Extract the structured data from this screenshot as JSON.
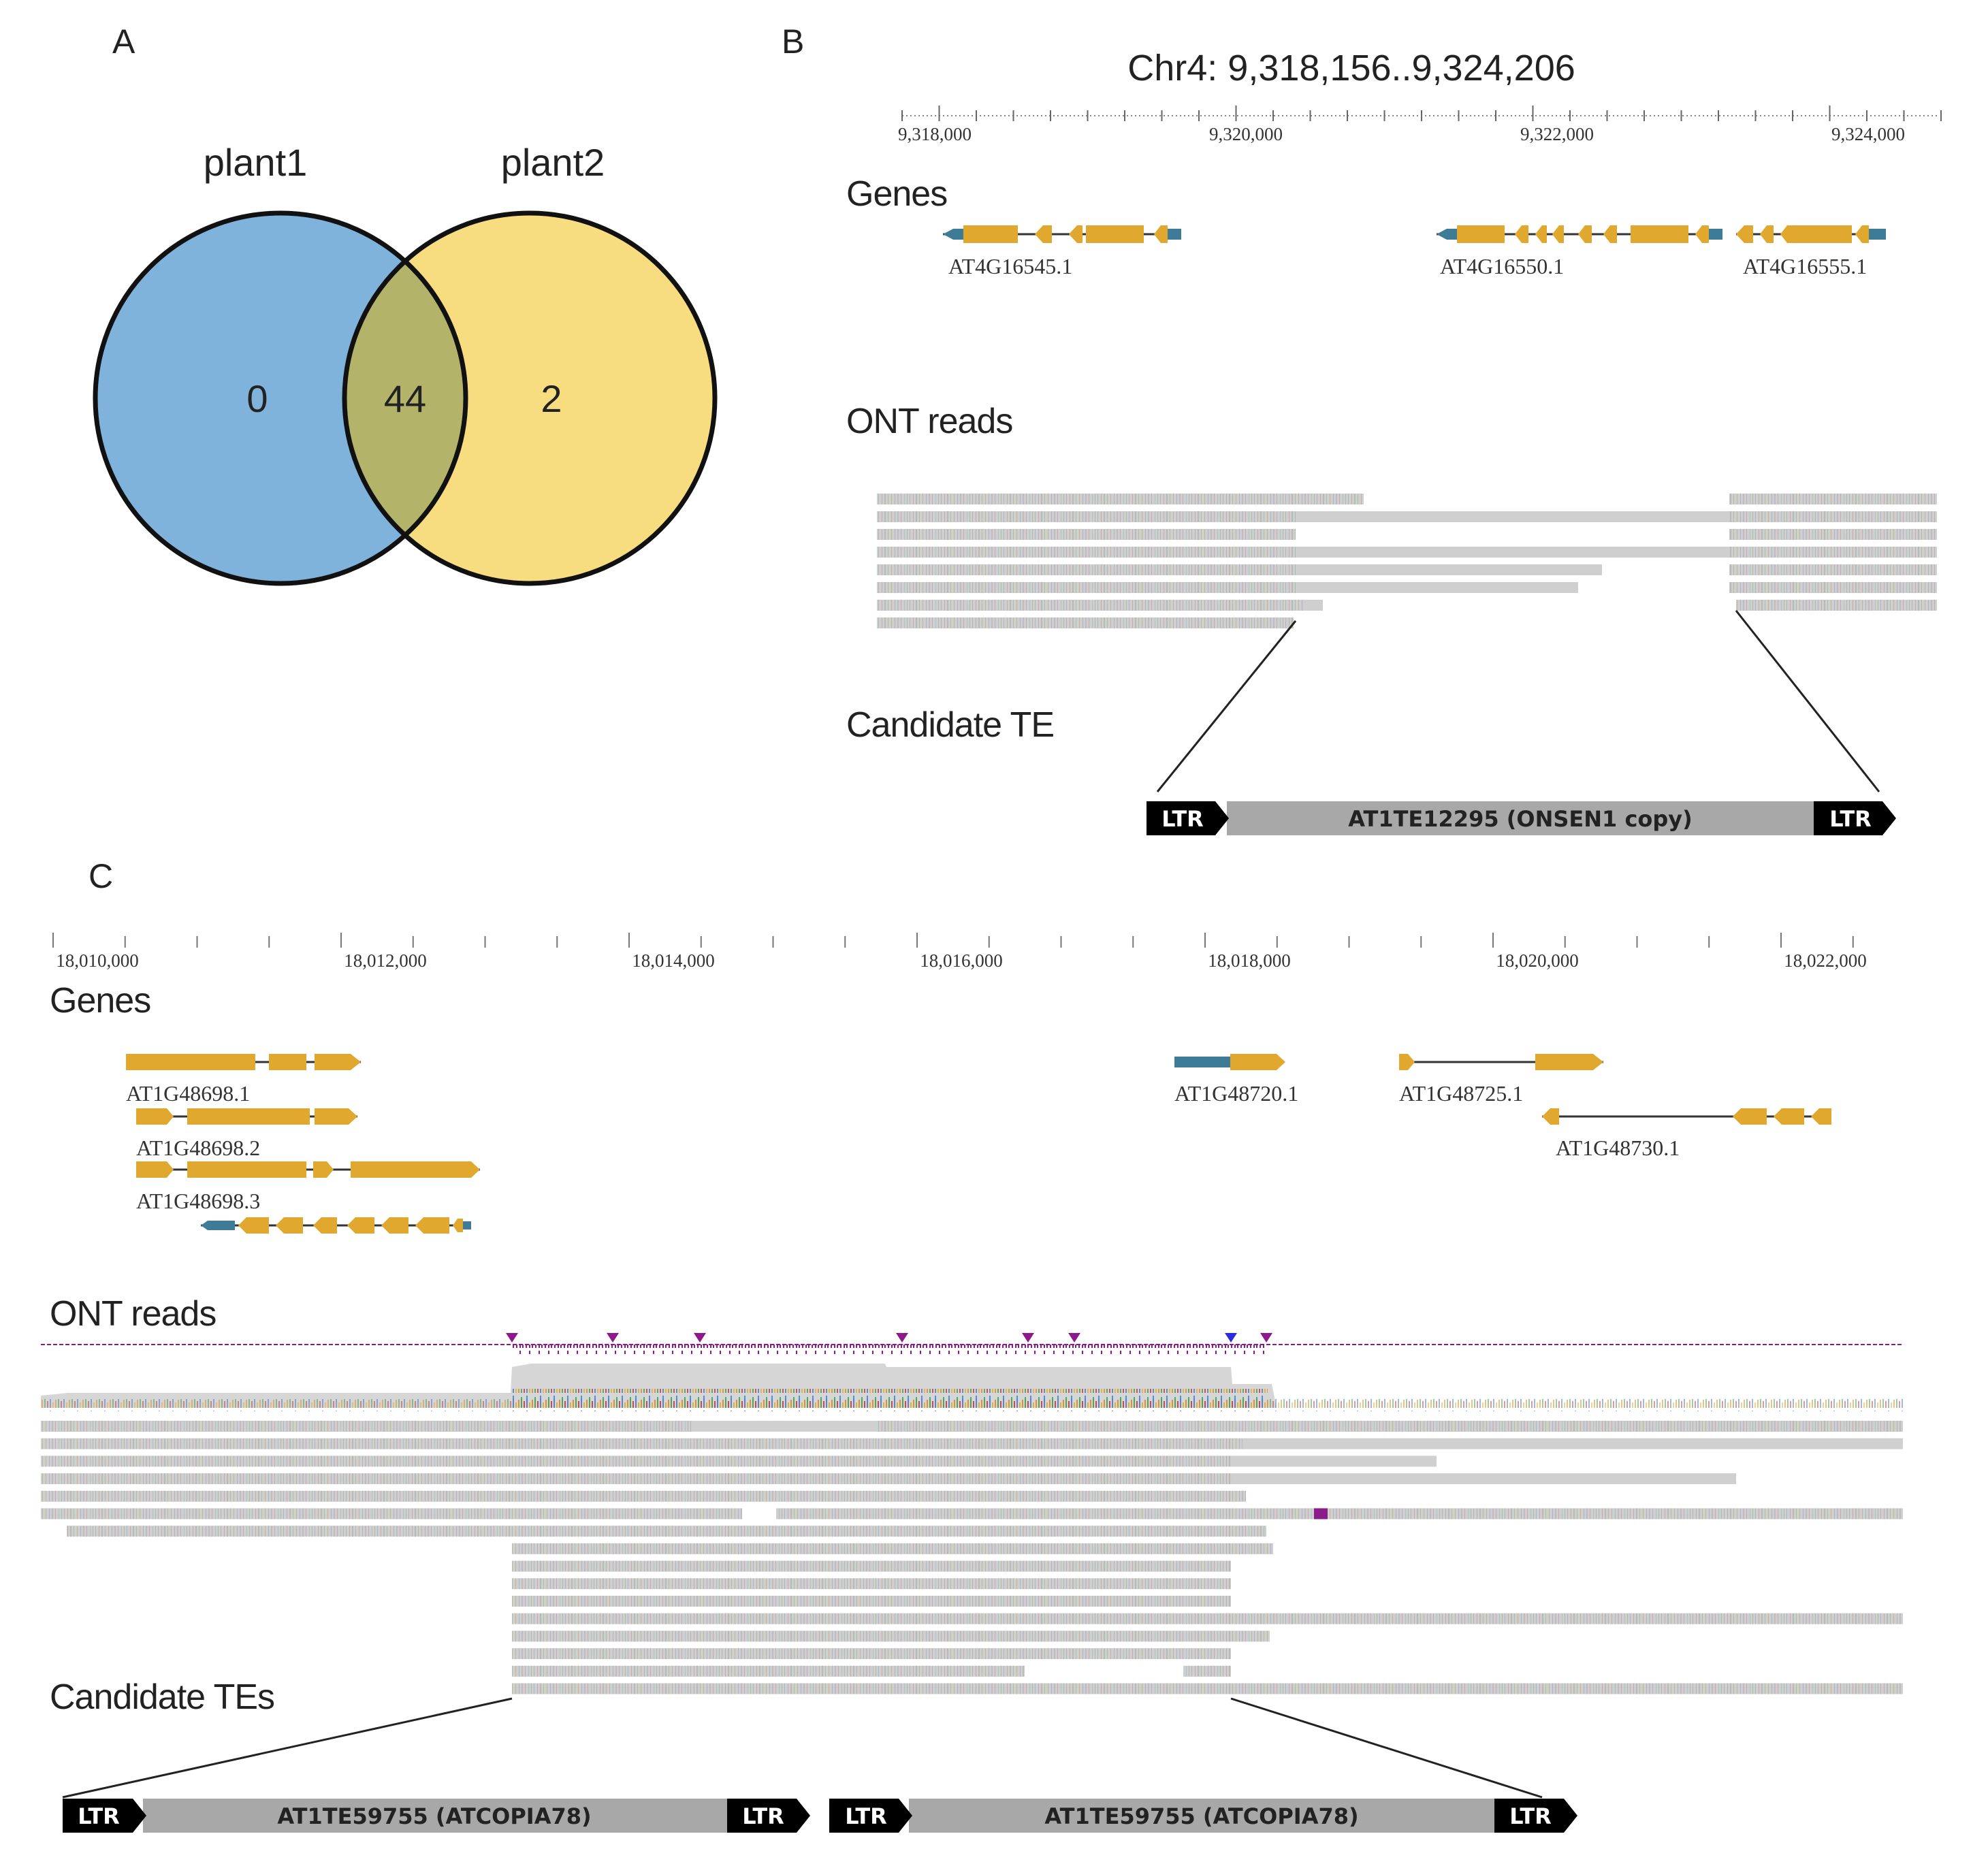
{
  "panels": {
    "a": {
      "letter": "A"
    },
    "b": {
      "letter": "B"
    },
    "c": {
      "letter": "C"
    }
  },
  "venn": {
    "set_left": "plant1",
    "set_right": "plant2",
    "only_left": "0",
    "both": "44",
    "only_right": "2",
    "colors": {
      "left": "#7fb3dc",
      "right": "#f7dc80",
      "overlap": "#b3b36a"
    }
  },
  "panel_b": {
    "region": "Chr4: 9,318,156..9,324,206",
    "ticks": [
      "9,318,000",
      "9,320,000",
      "9,322,000",
      "9,324,000"
    ],
    "genes_title": "Genes",
    "genes": [
      "AT4G16545.1",
      "AT4G16550.1",
      "AT4G16555.1"
    ],
    "reads_title": "ONT reads",
    "te_title": "Candidate TE",
    "te": {
      "ltr_left": "LTR",
      "body": "AT1TE12295 (ONSEN1 copy)",
      "ltr_right": "LTR"
    }
  },
  "panel_c": {
    "ticks": [
      "18,010,000",
      "18,012,000",
      "18,014,000",
      "18,016,000",
      "18,018,000",
      "18,020,000",
      "18,022,000"
    ],
    "genes_title": "Genes",
    "genes": [
      "AT1G48698.1",
      "AT1G48698.2",
      "AT1G48698.3",
      "AT1G48720.1",
      "AT1G48725.1",
      "AT1G48730.1"
    ],
    "reads_title": "ONT reads",
    "te_title": "Candidate TEs",
    "tes": [
      {
        "ltr_left": "LTR",
        "body": "AT1TE59755 (ATCOPIA78)",
        "ltr_right": "LTR"
      },
      {
        "ltr_left": "LTR",
        "body": "AT1TE59755 (ATCOPIA78)",
        "ltr_right": "LTR"
      }
    ]
  },
  "colors": {
    "exon": "#e0a82e",
    "utr": "#3d7b96",
    "read": "#c9c9c9",
    "coverage": "#d6d6d6",
    "insertion": "#8b1a8b",
    "ltr": "#000000",
    "te_body": "#a8a8a8"
  }
}
